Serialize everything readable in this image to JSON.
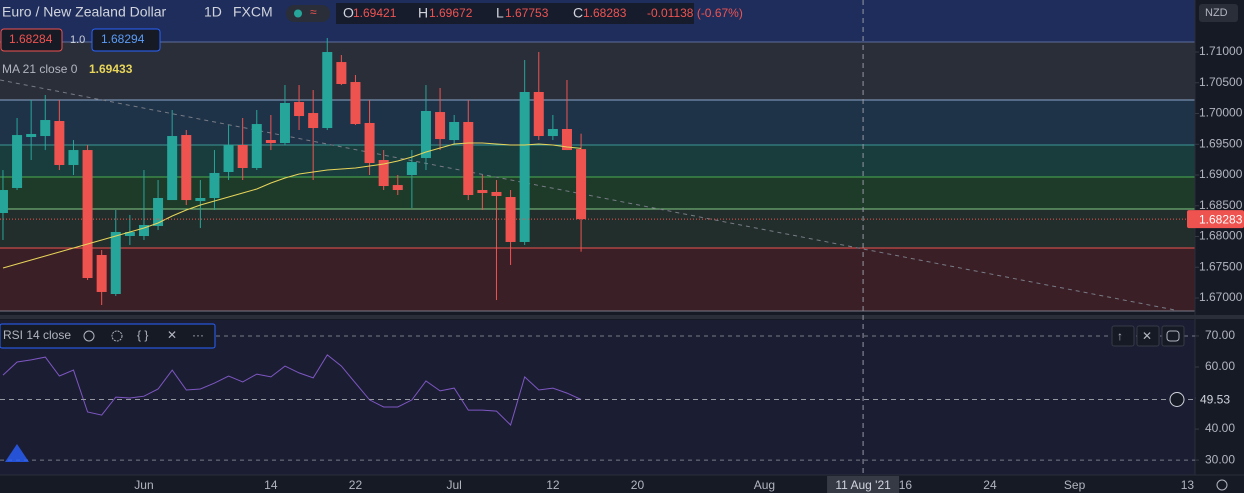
{
  "header": {
    "o": "O",
    "h": "H",
    "l": "L",
    "c": "C",
    "change": "-0.01138 (-0.67%)",
    "sell": "1.68284",
    "lot": "1.0",
    "buy": "1.68294"
  },
  "crosshair": {
    "x": 61,
    "label": "11 Aug '21"
  },
  "chart_data": [
    {
      "type": "candlestick",
      "title": "Euro / New Zealand Dollar",
      "interval": "1D",
      "source": "FXCM",
      "currency": "NZD",
      "x": [
        0,
        1,
        2,
        3,
        4,
        5,
        6,
        7,
        8,
        9,
        10,
        11,
        12,
        13,
        14,
        15,
        16,
        17,
        18,
        19,
        20,
        21,
        22,
        23,
        24,
        25,
        26,
        27,
        28,
        29,
        30,
        31,
        32,
        33,
        34,
        35,
        36,
        37,
        38,
        39,
        40,
        41
      ],
      "open": [
        1.68382,
        1.68789,
        1.69618,
        1.69634,
        1.69878,
        1.69163,
        1.69406,
        1.67699,
        1.67065,
        1.68008,
        1.68008,
        1.68171,
        1.68593,
        1.6965,
        1.68577,
        1.68626,
        1.69049,
        1.69488,
        1.69114,
        1.69569,
        1.6952,
        1.70187,
        1.70008,
        1.69764,
        1.70837,
        1.70512,
        1.69846,
        1.69244,
        1.68837,
        1.69,
        1.69276,
        1.70024,
        1.69569,
        1.69862,
        1.68756,
        1.68724,
        1.68642,
        1.67911,
        1.7035,
        1.69634,
        1.69748,
        1.69421
      ],
      "high": [
        1.69081,
        1.69927,
        1.70219,
        1.70301,
        1.70219,
        1.69569,
        1.69488,
        1.6778,
        1.68431,
        1.6835,
        1.69081,
        1.68919,
        1.70057,
        1.69732,
        1.68919,
        1.69406,
        1.69813,
        1.69927,
        1.70057,
        1.69976,
        1.70463,
        1.70463,
        1.70382,
        1.71228,
        1.70951,
        1.70626,
        1.70219,
        1.69406,
        1.69,
        1.69406,
        1.70463,
        1.70415,
        1.69976,
        1.70219,
        1.69,
        1.68919,
        1.68756,
        1.7087,
        1.71,
        1.69976,
        1.70545,
        1.69672
      ],
      "low": [
        1.67943,
        1.68756,
        1.69244,
        1.69406,
        1.69081,
        1.69,
        1.67293,
        1.66886,
        1.67033,
        1.67862,
        1.67943,
        1.68106,
        1.68593,
        1.68512,
        1.68138,
        1.68431,
        1.68919,
        1.68919,
        1.69081,
        1.69406,
        1.69488,
        1.69732,
        1.68919,
        1.69732,
        1.70463,
        1.69813,
        1.69,
        1.68756,
        1.68675,
        1.68463,
        1.69081,
        1.69406,
        1.69488,
        1.68593,
        1.68431,
        1.66967,
        1.67537,
        1.67862,
        1.69569,
        1.69569,
        1.69406,
        1.67753
      ],
      "close": [
        1.68756,
        1.6965,
        1.69667,
        1.69894,
        1.69163,
        1.69406,
        1.67325,
        1.67098,
        1.68073,
        1.68073,
        1.68187,
        1.68626,
        1.69634,
        1.68593,
        1.68626,
        1.69033,
        1.69488,
        1.69114,
        1.69829,
        1.6952,
        1.70171,
        1.69959,
        1.69764,
        1.71,
        1.7048,
        1.69829,
        1.69195,
        1.68821,
        1.68756,
        1.69211,
        1.70041,
        1.69585,
        1.69862,
        1.68675,
        1.68707,
        1.68659,
        1.67911,
        1.7035,
        1.69634,
        1.69748,
        1.69406,
        1.68283
      ],
      "up_color": "#26a69a",
      "down_color": "#ef5350",
      "xlim": [
        -0.21,
        84.54
      ],
      "xticks": [
        {
          "value": 10,
          "label": "Jun"
        },
        {
          "value": 19,
          "label": "14"
        },
        {
          "value": 25,
          "label": "22"
        },
        {
          "value": 32,
          "label": "Jul"
        },
        {
          "value": 39,
          "label": "12"
        },
        {
          "value": 45,
          "label": "20"
        },
        {
          "value": 54,
          "label": "Aug"
        },
        {
          "value": 64,
          "label": "16"
        },
        {
          "value": 70,
          "label": "24"
        },
        {
          "value": 76,
          "label": "Sep"
        },
        {
          "value": 84,
          "label": "13"
        }
      ],
      "ylim": [
        1.66756,
        1.71846
      ],
      "yticks": [
        {
          "value": 1.67,
          "label": "1.67000"
        },
        {
          "value": 1.675,
          "label": "1.67500"
        },
        {
          "value": 1.68,
          "label": "1.68000"
        },
        {
          "value": 1.685,
          "label": "1.68500"
        },
        {
          "value": 1.69,
          "label": "1.69000"
        },
        {
          "value": 1.695,
          "label": "1.69500"
        },
        {
          "value": 1.7,
          "label": "1.70000"
        },
        {
          "value": 1.705,
          "label": "1.70500"
        },
        {
          "value": 1.71,
          "label": "1.71000"
        }
      ],
      "ma": {
        "name": "MA 21 close 0",
        "color": "#e8d55a",
        "values": [
          1.67488,
          1.67553,
          1.67618,
          1.67683,
          1.67748,
          1.67813,
          1.67878,
          1.67943,
          1.68008,
          1.68073,
          1.68138,
          1.6822,
          1.68333,
          1.68431,
          1.68512,
          1.68577,
          1.68642,
          1.68707,
          1.68772,
          1.6887,
          1.68951,
          1.69016,
          1.69049,
          1.69081,
          1.69098,
          1.69114,
          1.69146,
          1.69179,
          1.69228,
          1.69293,
          1.69374,
          1.69439,
          1.69504,
          1.6952,
          1.6952,
          1.69504,
          1.69488,
          1.69488,
          1.69504,
          1.69488,
          1.69455,
          1.69433
        ]
      },
      "levels": {
        "values": [
          1.71163,
          1.70219,
          1.69488,
          1.68967,
          1.68447,
          1.67813,
          1.66789
        ],
        "colors": [
          "#5d6f9c",
          "#8aa6c9",
          "#3c9a96",
          "#4caf50",
          "#81c784",
          "#ef5350",
          "#787b86"
        ],
        "fills": [
          "#1e2d5c",
          "#2a2e39",
          "#1e3348",
          "#193c3d",
          "#1e3b2a",
          "#222e2b",
          "#3b1f26"
        ]
      },
      "trendline": {
        "x": [
          -0.2,
          83.1
        ],
        "values": [
          1.70545,
          1.66805
        ],
        "color": "#787b86"
      }
    },
    {
      "type": "line",
      "name": "RSI 14 close",
      "color": "#7e57c2",
      "values": [
        57.4,
        61.6,
        62.3,
        63.2,
        57.1,
        59.0,
        45.5,
        44.5,
        50.3,
        50.0,
        50.6,
        52.9,
        59.0,
        52.6,
        52.9,
        54.8,
        57.1,
        55.2,
        57.7,
        56.8,
        60.3,
        58.1,
        56.5,
        63.9,
        60.3,
        54.8,
        49.4,
        47.1,
        47.1,
        49.4,
        55.5,
        52.3,
        53.2,
        46.1,
        46.1,
        45.8,
        41.3,
        56.8,
        52.6,
        53.2,
        51.6,
        49.53
      ],
      "ylim": [
        25.2,
        74.5
      ],
      "yticks": [
        {
          "value": 30,
          "label": "30.00"
        },
        {
          "value": 40,
          "label": "40.00"
        },
        {
          "value": 50,
          "label": "50.00"
        },
        {
          "value": 60,
          "label": "60.00"
        },
        {
          "value": 70,
          "label": "70.00"
        }
      ],
      "bands": [
        70,
        30
      ]
    }
  ]
}
